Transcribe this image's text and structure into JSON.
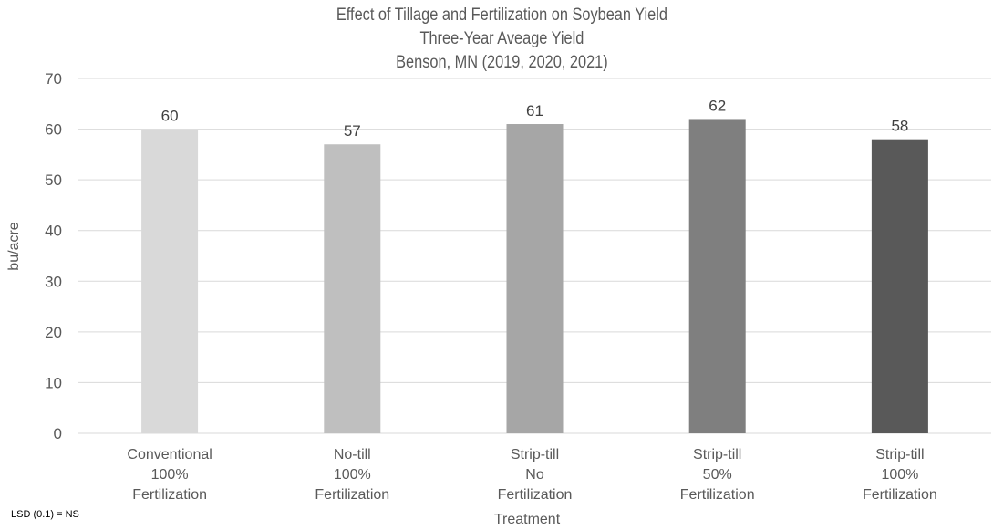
{
  "chart_data": {
    "type": "bar",
    "title": [
      "Effect of Tillage and Fertilization on Soybean Yield",
      "Three-Year Aveage Yield",
      "Benson, MN (2019, 2020, 2021)"
    ],
    "xlabel": "Treatment",
    "ylabel": "bu/acre",
    "ylim": [
      0,
      70
    ],
    "yticks": [
      0,
      10,
      20,
      30,
      40,
      50,
      60,
      70
    ],
    "grid": true,
    "categories": [
      [
        "Conventional",
        "100%",
        "Fertilization"
      ],
      [
        "No-till",
        "100%",
        "Fertilization"
      ],
      [
        "Strip-till",
        "No",
        "Fertilization"
      ],
      [
        "Strip-till",
        "50%",
        "Fertilization"
      ],
      [
        "Strip-till",
        "100%",
        "Fertilization"
      ]
    ],
    "values": [
      60,
      57,
      61,
      62,
      58
    ],
    "data_labels": [
      "60",
      "57",
      "61",
      "62",
      "58"
    ],
    "bar_colors": [
      "#d9d9d9",
      "#bfbfbf",
      "#a6a6a6",
      "#7f7f7f",
      "#595959"
    ],
    "gridline_color": "#d9d9d9",
    "text_color": "#595959"
  },
  "footnote": "LSD (0.1) = NS"
}
